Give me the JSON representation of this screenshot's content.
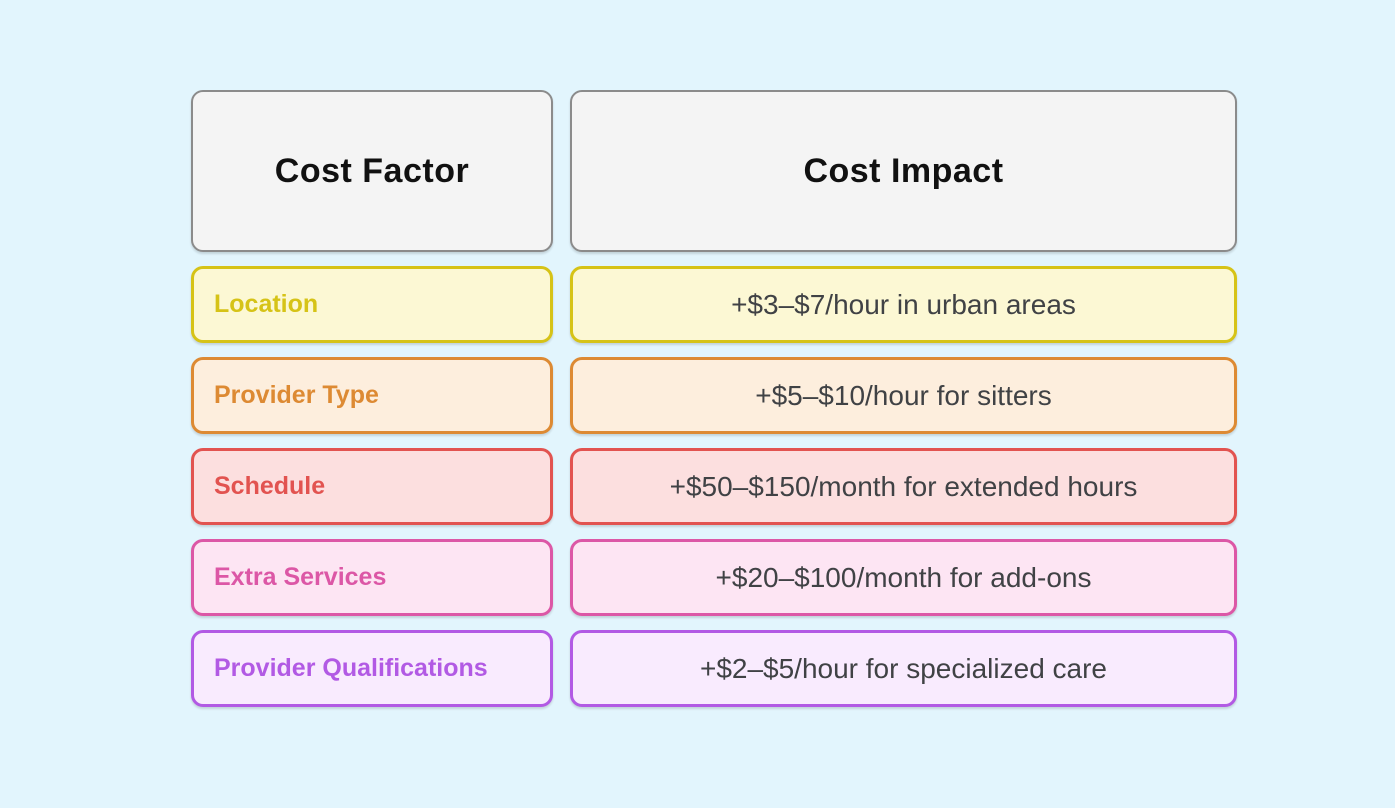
{
  "page": {
    "background_color": "#e2f5fd"
  },
  "table": {
    "columns": [
      {
        "label": "Cost Factor"
      },
      {
        "label": "Cost Impact"
      }
    ],
    "header_style": {
      "background": "#f4f4f4",
      "border": "#8b8b8b",
      "text": "#111111"
    },
    "impact_text_color": "#404245",
    "rows": [
      {
        "factor": "Location",
        "impact": "+$3–$7/hour in urban areas",
        "accent": "#d6c317",
        "bg": "#fcf8d4"
      },
      {
        "factor": "Provider Type",
        "impact": "+$5–$10/hour for sitters",
        "accent": "#dd8a33",
        "bg": "#fdeedd"
      },
      {
        "factor": "Schedule",
        "impact": "+$50–$150/month for extended hours",
        "accent": "#e25350",
        "bg": "#fcdfdf"
      },
      {
        "factor": "Extra Services",
        "impact": "+$20–$100/month for add-ons",
        "accent": "#dc57a6",
        "bg": "#fde5f3"
      },
      {
        "factor": "Provider Qualifications",
        "impact": "+$2–$5/hour for specialized care",
        "accent": "#b25ae4",
        "bg": "#f9ebfe"
      }
    ]
  }
}
